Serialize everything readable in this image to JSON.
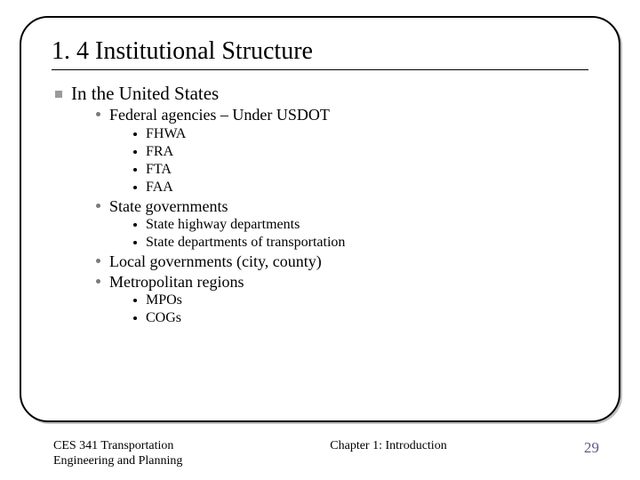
{
  "title": "1. 4 Institutional Structure",
  "heading": "In the United States",
  "items": [
    {
      "label": "Federal agencies – Under USDOT",
      "children": [
        "FHWA",
        "FRA",
        "FTA",
        "FAA"
      ]
    },
    {
      "label": "State governments",
      "children": [
        "State highway departments",
        "State departments of transportation"
      ]
    },
    {
      "label": "Local governments (city, county)",
      "children": []
    },
    {
      "label": "Metropolitan regions",
      "children": [
        "MPOs",
        "COGs"
      ]
    }
  ],
  "footer": {
    "left_line1": "CES 341 Transportation",
    "left_line2": "Engineering and Planning",
    "center": "Chapter 1: Introduction",
    "page": "29"
  },
  "colors": {
    "border": "#000000",
    "square_bullet": "#9a9a9a",
    "dot_bullet_l2": "#7a7a7a",
    "dot_bullet_l3": "#000000",
    "page_num": "#5a5a8a"
  }
}
